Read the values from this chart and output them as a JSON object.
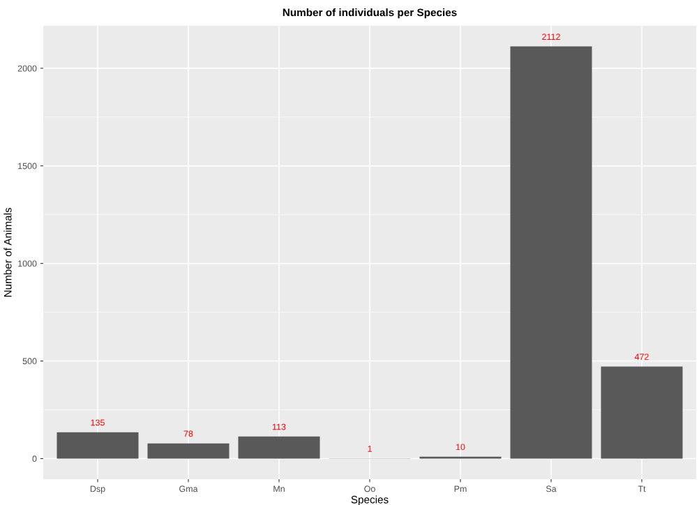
{
  "chart_data": {
    "type": "bar",
    "title": "Number of individuals per Species",
    "xlabel": "Species",
    "ylabel": "Number of Animals",
    "categories": [
      "Dsp",
      "Gma",
      "Mn",
      "Oo",
      "Pm",
      "Sa",
      "Tt"
    ],
    "values": [
      135,
      78,
      113,
      1,
      10,
      2112,
      472
    ],
    "color": "#595959",
    "ylim": [
      -105.6,
      2217.6
    ],
    "yticks": [
      0,
      {
        "value": 250,
        "label": null
      },
      500,
      {
        "value": 750,
        "label": null
      },
      1000,
      {
        "value": 1250,
        "label": null
      },
      1500,
      {
        "value": 1750,
        "label": null
      },
      2000
    ],
    "data_labels": true,
    "grid": true
  }
}
